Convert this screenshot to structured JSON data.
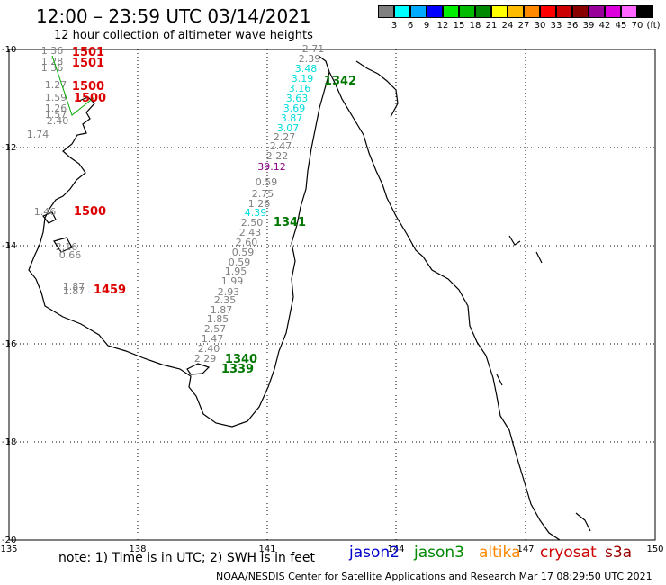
{
  "header": {
    "title": "12:00 – 23:59 UTC 03/14/2021",
    "subtitle": "12 hour collection of altimeter wave heights"
  },
  "scale": {
    "colors": [
      "#808080",
      "#00ffff",
      "#00aaff",
      "#0000ff",
      "#00ee00",
      "#00bb00",
      "#008800",
      "#ffff00",
      "#ffbb00",
      "#ff8800",
      "#ff0000",
      "#cc0000",
      "#880000",
      "#990099",
      "#dd00dd",
      "#ff66ff",
      "#000000"
    ],
    "labels": [
      "3",
      "6",
      "9",
      "12",
      "15",
      "18",
      "21",
      "24",
      "27",
      "30",
      "33",
      "36",
      "39",
      "42",
      "45",
      "70",
      "(ft)"
    ]
  },
  "axes": {
    "lon_ticks": [
      "135",
      "138",
      "141",
      "144",
      "147",
      "150"
    ],
    "lat_ticks": [
      "-10",
      "-12",
      "-14",
      "-16",
      "-18",
      "-20"
    ]
  },
  "swh_colors": {
    "gray": "#808080",
    "cyan": "#00dddd",
    "purple": "#880088"
  },
  "time_colors": {
    "red": "#dd0000",
    "green": "#007700"
  },
  "tracks": [
    {
      "name": "track-east",
      "time": "1342",
      "time_color": "green",
      "time_pos": [
        367,
        89
      ],
      "points": [
        {
          "v": "2.71",
          "c": "gray"
        },
        {
          "v": "2.39",
          "c": "gray"
        },
        {
          "v": "3.48",
          "c": "cyan"
        },
        {
          "v": "3.19",
          "c": "cyan"
        },
        {
          "v": "3.16",
          "c": "cyan"
        },
        {
          "v": "3.63",
          "c": "cyan"
        },
        {
          "v": "3.69",
          "c": "cyan"
        },
        {
          "v": "3.87",
          "c": "cyan"
        },
        {
          "v": "3.07",
          "c": "cyan"
        },
        {
          "v": "2.27",
          "c": "gray"
        },
        {
          "v": "2.47",
          "c": "gray"
        },
        {
          "v": "2.22",
          "c": "gray"
        },
        {
          "v": "39.12",
          "c": "purple"
        },
        {
          "v": "0.59",
          "c": "gray"
        },
        {
          "v": "2.75",
          "c": "gray"
        },
        {
          "v": "1.26",
          "c": "gray"
        },
        {
          "v": "4.39",
          "c": "cyan"
        },
        {
          "v": "2.50",
          "c": "gray"
        },
        {
          "v": "2.43",
          "c": "gray"
        },
        {
          "v": "2.60",
          "c": "gray"
        },
        {
          "v": "0.59",
          "c": "gray"
        },
        {
          "v": "0.59",
          "c": "gray"
        },
        {
          "v": "1.95",
          "c": "gray"
        },
        {
          "v": "1.99",
          "c": "gray"
        },
        {
          "v": "2.93",
          "c": "gray"
        },
        {
          "v": "2.35",
          "c": "gray"
        },
        {
          "v": "1.87",
          "c": "gray"
        },
        {
          "v": "1.85",
          "c": "gray"
        },
        {
          "v": "2.57",
          "c": "gray"
        },
        {
          "v": "1.47",
          "c": "gray"
        },
        {
          "v": "2.40",
          "c": "gray"
        },
        {
          "v": "2.29",
          "c": "gray"
        }
      ]
    },
    {
      "name": "track-west",
      "points": [
        {
          "v": "1.36",
          "c": "gray"
        },
        {
          "v": "1.28",
          "c": "gray"
        },
        {
          "v": "1.36",
          "c": "gray"
        },
        {
          "v": "1.27",
          "c": "gray"
        },
        {
          "v": "1.59",
          "c": "gray"
        },
        {
          "v": "1.26",
          "c": "gray"
        },
        {
          "v": "1.57",
          "c": "gray"
        },
        {
          "v": "2.40",
          "c": "gray"
        },
        {
          "v": "1.74",
          "c": "gray"
        },
        {
          "v": "1.46",
          "c": "gray"
        },
        {
          "v": "2.16",
          "c": "gray"
        },
        {
          "v": "0.66",
          "c": "gray"
        },
        {
          "v": "1.87",
          "c": "gray"
        },
        {
          "v": "1.87",
          "c": "gray"
        }
      ]
    }
  ],
  "time_labels": [
    {
      "text": "1501",
      "color": "red"
    },
    {
      "text": "1501",
      "color": "red"
    },
    {
      "text": "1500",
      "color": "red"
    },
    {
      "text": "1500",
      "color": "red"
    },
    {
      "text": "1500",
      "color": "red"
    },
    {
      "text": "1459",
      "color": "red"
    },
    {
      "text": "1341",
      "color": "green"
    },
    {
      "text": "1340",
      "color": "green"
    },
    {
      "text": "1339",
      "color": "green"
    }
  ],
  "footer": {
    "note": "note:  1) Time is in UTC;  2) SWH is in feet",
    "legend": [
      {
        "label": "jason2",
        "color": "#0000cc"
      },
      {
        "label": "jason3",
        "color": "#008800"
      },
      {
        "label": "altika",
        "color": "#ff8800"
      },
      {
        "label": "cryosat",
        "color": "#cc0000"
      },
      {
        "label": "s3a",
        "color": "#990000"
      }
    ],
    "credit": "NOAA/NESDIS Center for Satellite Applications and Research    Mar 17 08:29:50 UTC 2021"
  }
}
